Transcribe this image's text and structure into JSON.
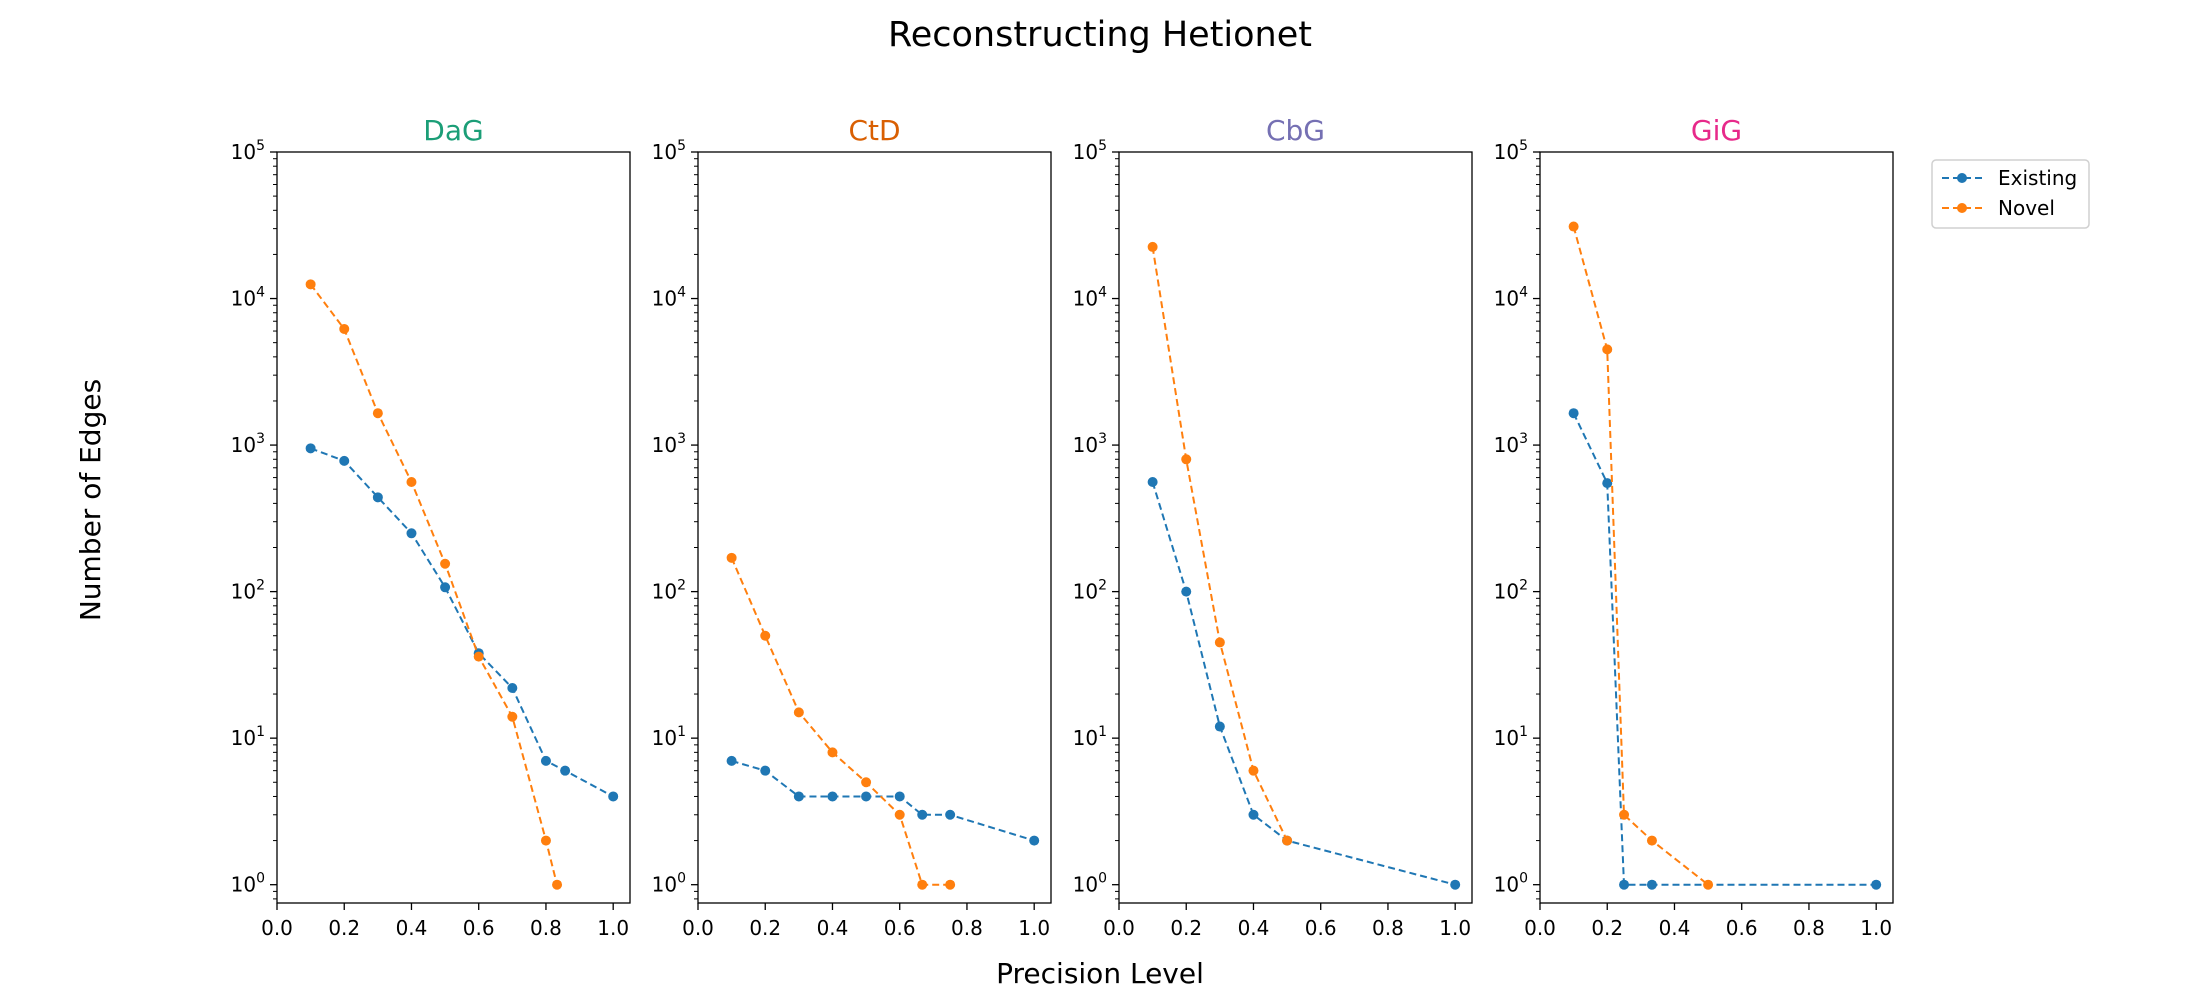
{
  "figure": {
    "title": "Reconstructing Hetionet",
    "xlabel": "Precision Level",
    "ylabel": "Number of Edges",
    "legend_position": "top-right"
  },
  "colors": {
    "existing": "#1f77b4",
    "novel": "#ff7f0e"
  },
  "chart_data": [
    {
      "type": "line",
      "title": "DaG",
      "title_color": "#1b9e77",
      "xlim": [
        0,
        1.05
      ],
      "yscale": "log",
      "ylim": [
        0.75,
        100000
      ],
      "xticks": [
        "0.0",
        "0.2",
        "0.4",
        "0.6",
        "0.8",
        "1.0"
      ],
      "yticks": [
        "10^0",
        "10^1",
        "10^2",
        "10^3",
        "10^4",
        "10^5"
      ],
      "series": [
        {
          "name": "Existing",
          "x": [
            0.1,
            0.2,
            0.3,
            0.4,
            0.5,
            0.6,
            0.7,
            0.8,
            0.857,
            1.0
          ],
          "y": [
            950,
            780,
            440,
            250,
            107,
            38,
            22,
            7,
            6,
            4
          ]
        },
        {
          "name": "Novel",
          "x": [
            0.1,
            0.2,
            0.3,
            0.4,
            0.5,
            0.6,
            0.7,
            0.8,
            0.833
          ],
          "y": [
            12500,
            6200,
            1650,
            560,
            155,
            36,
            14,
            2,
            1
          ]
        }
      ]
    },
    {
      "type": "line",
      "title": "CtD",
      "title_color": "#d95f02",
      "xlim": [
        0,
        1.05
      ],
      "yscale": "log",
      "ylim": [
        0.75,
        100000
      ],
      "xticks": [
        "0.0",
        "0.2",
        "0.4",
        "0.6",
        "0.8",
        "1.0"
      ],
      "yticks": [
        "10^0",
        "10^1",
        "10^2",
        "10^3",
        "10^4",
        "10^5"
      ],
      "series": [
        {
          "name": "Existing",
          "x": [
            0.1,
            0.2,
            0.3,
            0.4,
            0.5,
            0.6,
            0.667,
            0.75,
            1.0
          ],
          "y": [
            7,
            6,
            4,
            4,
            4,
            4,
            3,
            3,
            2
          ]
        },
        {
          "name": "Novel",
          "x": [
            0.1,
            0.2,
            0.3,
            0.4,
            0.5,
            0.6,
            0.667,
            0.75
          ],
          "y": [
            170,
            50,
            15,
            8,
            5,
            3,
            1,
            1
          ]
        }
      ]
    },
    {
      "type": "line",
      "title": "CbG",
      "title_color": "#7570b3",
      "xlim": [
        0,
        1.05
      ],
      "yscale": "log",
      "ylim": [
        0.75,
        100000
      ],
      "xticks": [
        "0.0",
        "0.2",
        "0.4",
        "0.6",
        "0.8",
        "1.0"
      ],
      "yticks": [
        "10^0",
        "10^1",
        "10^2",
        "10^3",
        "10^4",
        "10^5"
      ],
      "series": [
        {
          "name": "Existing",
          "x": [
            0.1,
            0.2,
            0.3,
            0.4,
            0.5,
            1.0
          ],
          "y": [
            560,
            100,
            12,
            3,
            2,
            1
          ]
        },
        {
          "name": "Novel",
          "x": [
            0.1,
            0.2,
            0.3,
            0.4,
            0.5
          ],
          "y": [
            22500,
            800,
            45,
            6,
            2
          ]
        }
      ]
    },
    {
      "type": "line",
      "title": "GiG",
      "title_color": "#e7298a",
      "xlim": [
        0,
        1.05
      ],
      "yscale": "log",
      "ylim": [
        0.75,
        100000
      ],
      "xticks": [
        "0.0",
        "0.2",
        "0.4",
        "0.6",
        "0.8",
        "1.0"
      ],
      "yticks": [
        "10^0",
        "10^1",
        "10^2",
        "10^3",
        "10^4",
        "10^5"
      ],
      "series": [
        {
          "name": "Existing",
          "x": [
            0.1,
            0.2,
            0.25,
            0.333,
            1.0
          ],
          "y": [
            1650,
            550,
            1,
            1,
            1
          ]
        },
        {
          "name": "Novel",
          "x": [
            0.1,
            0.2,
            0.25,
            0.333,
            0.5
          ],
          "y": [
            31000,
            4500,
            3,
            2,
            1
          ]
        }
      ]
    }
  ]
}
